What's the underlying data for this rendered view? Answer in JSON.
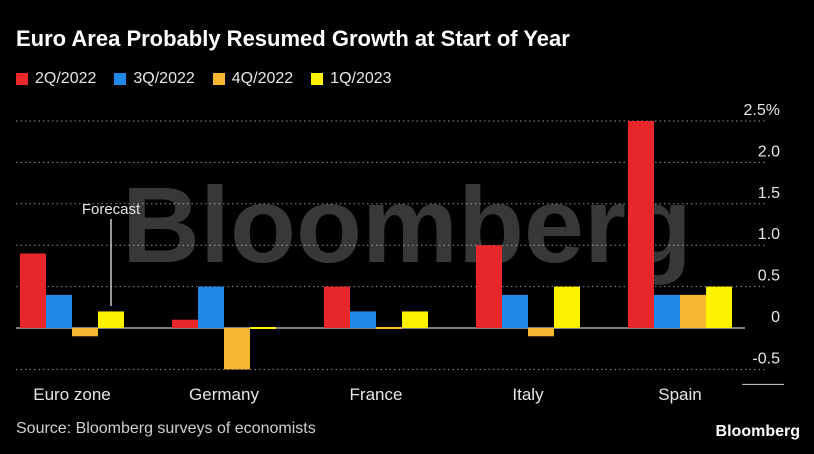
{
  "header": {
    "title": "Euro Area Probably Resumed Growth at Start of Year"
  },
  "footer": {
    "source": "Source: Bloomberg surveys of economists",
    "brand": "Bloomberg"
  },
  "watermark": "Bloomberg",
  "chart_data": {
    "type": "bar",
    "title": "Euro Area Probably Resumed Growth at Start of Year",
    "categories": [
      "Euro zone",
      "Germany",
      "France",
      "Italy",
      "Spain"
    ],
    "series": [
      {
        "name": "2Q/2022",
        "color": "#e8272a",
        "values": [
          0.9,
          0.1,
          0.5,
          1.0,
          2.5
        ]
      },
      {
        "name": "3Q/2022",
        "color": "#1f8ae6",
        "values": [
          0.4,
          0.5,
          0.2,
          0.4,
          0.4
        ]
      },
      {
        "name": "4Q/2022",
        "color": "#f7b731",
        "values": [
          -0.1,
          -0.5,
          0.0,
          -0.1,
          0.4
        ]
      },
      {
        "name": "1Q/2023",
        "color": "#fff200",
        "values": [
          0.2,
          0.0,
          0.2,
          0.5,
          0.5
        ]
      }
    ],
    "ylim": [
      -0.5,
      2.5
    ],
    "yticks": [
      {
        "value": 2.5,
        "label": "2.5%"
      },
      {
        "value": 2.0,
        "label": "2.0"
      },
      {
        "value": 1.5,
        "label": "1.5"
      },
      {
        "value": 1.0,
        "label": "1.0"
      },
      {
        "value": 0.5,
        "label": "0.5"
      },
      {
        "value": 0,
        "label": "0"
      },
      {
        "value": -0.5,
        "label": "-0.5"
      }
    ],
    "annotation": {
      "text": "Forecast",
      "category": "Euro zone",
      "series": "1Q/2023"
    },
    "grid": true,
    "legend_position": "top-left",
    "xlabel": "",
    "ylabel": ""
  }
}
